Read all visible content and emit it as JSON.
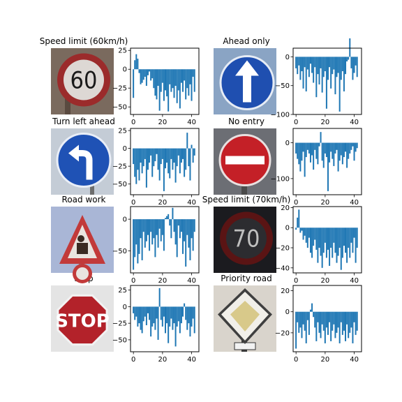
{
  "colors": {
    "bar": "#1f77b4",
    "axis": "#000000",
    "background": "#ffffff"
  },
  "signs": [
    {
      "title": "Speed limit (60km/h)",
      "icon": "speed-limit-60-sign-image",
      "sign_text": "60"
    },
    {
      "title": "Ahead only",
      "icon": "ahead-only-sign-image",
      "sign_text": ""
    },
    {
      "title": "Turn left ahead",
      "icon": "turn-left-ahead-sign-image",
      "sign_text": ""
    },
    {
      "title": "No entry",
      "icon": "no-entry-sign-image",
      "sign_text": ""
    },
    {
      "title": "Road work",
      "icon": "road-work-sign-image",
      "sign_text": ""
    },
    {
      "title": "Speed limit (70km/h)",
      "icon": "speed-limit-70-sign-image",
      "sign_text": "70"
    },
    {
      "title": "Stop",
      "icon": "stop-sign-image",
      "sign_text": "STOP"
    },
    {
      "title": "Priority road",
      "icon": "priority-road-sign-image",
      "sign_text": ""
    }
  ],
  "chart_data": [
    {
      "type": "bar",
      "title": "",
      "xlim": [
        -2,
        45
      ],
      "ylim": [
        -60,
        28
      ],
      "xticks": [
        0,
        20,
        40
      ],
      "yticks": [
        25,
        0,
        -25,
        -50
      ],
      "x": [
        0,
        1,
        2,
        3,
        4,
        5,
        6,
        7,
        8,
        9,
        10,
        11,
        12,
        13,
        14,
        15,
        16,
        17,
        18,
        19,
        20,
        21,
        22,
        23,
        24,
        25,
        26,
        27,
        28,
        29,
        30,
        31,
        32,
        33,
        34,
        35,
        36,
        37,
        38,
        39,
        40,
        41,
        42
      ],
      "values": [
        -38,
        12,
        20,
        14,
        -5,
        -20,
        -18,
        -14,
        -10,
        -22,
        -8,
        -3,
        -15,
        -12,
        -25,
        -35,
        -40,
        -22,
        -55,
        -30,
        -18,
        -42,
        -28,
        -36,
        -56,
        -20,
        -30,
        -25,
        -38,
        -22,
        -45,
        -28,
        -52,
        -18,
        -30,
        -15,
        -40,
        -25,
        -35,
        -20,
        -42,
        -10,
        -30
      ]
    },
    {
      "type": "bar",
      "title": "",
      "xlim": [
        -2,
        45
      ],
      "ylim": [
        -100,
        15
      ],
      "xticks": [
        0,
        20,
        40
      ],
      "yticks": [
        0,
        -50,
        -100
      ],
      "x": [
        0,
        1,
        2,
        3,
        4,
        5,
        6,
        7,
        8,
        9,
        10,
        11,
        12,
        13,
        14,
        15,
        16,
        17,
        18,
        19,
        20,
        21,
        22,
        23,
        24,
        25,
        26,
        27,
        28,
        29,
        30,
        31,
        32,
        33,
        34,
        35,
        36,
        37,
        38,
        39,
        40,
        41,
        42
      ],
      "values": [
        -20,
        -30,
        -15,
        -40,
        -25,
        -55,
        -18,
        -60,
        -22,
        -35,
        -12,
        -28,
        -45,
        -18,
        -70,
        -30,
        -48,
        -20,
        -62,
        -35,
        -25,
        -90,
        -40,
        -18,
        -55,
        -30,
        -22,
        -65,
        -35,
        -28,
        -95,
        -40,
        -25,
        -60,
        -30,
        -8,
        -5,
        32,
        -20,
        -40,
        -28,
        -15,
        -35
      ]
    },
    {
      "type": "bar",
      "title": "",
      "xlim": [
        -2,
        45
      ],
      "ylim": [
        -65,
        28
      ],
      "xticks": [
        0,
        20,
        40
      ],
      "yticks": [
        25,
        0,
        -25,
        -50
      ],
      "x": [
        0,
        1,
        2,
        3,
        4,
        5,
        6,
        7,
        8,
        9,
        10,
        11,
        12,
        13,
        14,
        15,
        16,
        17,
        18,
        19,
        20,
        21,
        22,
        23,
        24,
        25,
        26,
        27,
        28,
        29,
        30,
        31,
        32,
        33,
        34,
        35,
        36,
        37,
        38,
        39,
        40,
        41,
        42
      ],
      "values": [
        -22,
        -40,
        -50,
        -30,
        -45,
        -20,
        -35,
        -25,
        -15,
        -55,
        -30,
        -20,
        -10,
        -40,
        -25,
        -18,
        -8,
        -30,
        -45,
        -22,
        -15,
        -60,
        -28,
        -20,
        -35,
        -42,
        -15,
        -30,
        -20,
        -48,
        -25,
        -10,
        -35,
        -20,
        -15,
        -40,
        -30,
        22,
        -25,
        -45,
        5,
        -20,
        -10
      ]
    },
    {
      "type": "bar",
      "title": "",
      "xlim": [
        -2,
        45
      ],
      "ylim": [
        -145,
        40
      ],
      "xticks": [
        0,
        20,
        40
      ],
      "yticks": [
        0,
        -100
      ],
      "x": [
        0,
        1,
        2,
        3,
        4,
        5,
        6,
        7,
        8,
        9,
        10,
        11,
        12,
        13,
        14,
        15,
        16,
        17,
        18,
        19,
        20,
        21,
        22,
        23,
        24,
        25,
        26,
        27,
        28,
        29,
        30,
        31,
        32,
        33,
        34,
        35,
        36,
        37,
        38,
        39,
        40,
        41,
        42
      ],
      "values": [
        -30,
        -45,
        -60,
        -80,
        -50,
        -25,
        -95,
        -40,
        -20,
        -30,
        -55,
        -35,
        -75,
        -20,
        -45,
        -60,
        -10,
        30,
        -50,
        -70,
        -30,
        -40,
        -135,
        -55,
        -25,
        -45,
        -65,
        -30,
        -20,
        -80,
        -50,
        -35,
        -60,
        -40,
        -25,
        -70,
        -45,
        -30,
        -20,
        -10,
        -50,
        -25,
        -15
      ]
    },
    {
      "type": "bar",
      "title": "",
      "xlim": [
        -2,
        45
      ],
      "ylim": [
        -85,
        20
      ],
      "xticks": [
        0,
        20,
        40
      ],
      "yticks": [
        0,
        -50
      ],
      "x": [
        0,
        1,
        2,
        3,
        4,
        5,
        6,
        7,
        8,
        9,
        10,
        11,
        12,
        13,
        14,
        15,
        16,
        17,
        18,
        19,
        20,
        21,
        22,
        23,
        24,
        25,
        26,
        27,
        28,
        29,
        30,
        31,
        32,
        33,
        34,
        35,
        36,
        37,
        38,
        39,
        40,
        41,
        42
      ],
      "values": [
        -80,
        -60,
        -40,
        -70,
        -55,
        -30,
        -65,
        -20,
        -45,
        -35,
        -25,
        -50,
        -20,
        -40,
        -30,
        -60,
        -25,
        -45,
        -15,
        -35,
        -25,
        -50,
        2,
        5,
        8,
        -10,
        -30,
        18,
        -20,
        -40,
        -60,
        -10,
        -30,
        -20,
        -55,
        -35,
        -75,
        -25,
        -45,
        -65,
        -30,
        -50,
        -20
      ]
    },
    {
      "type": "bar",
      "title": "",
      "xlim": [
        -2,
        45
      ],
      "ylim": [
        -45,
        21
      ],
      "xticks": [
        0,
        20,
        40
      ],
      "yticks": [
        20,
        0,
        -20,
        -40
      ],
      "x": [
        0,
        1,
        2,
        3,
        4,
        5,
        6,
        7,
        8,
        9,
        10,
        11,
        12,
        13,
        14,
        15,
        16,
        17,
        18,
        19,
        20,
        21,
        22,
        23,
        24,
        25,
        26,
        27,
        28,
        29,
        30,
        31,
        32,
        33,
        34,
        35,
        36,
        37,
        38,
        39,
        40,
        41,
        42
      ],
      "values": [
        -2,
        10,
        18,
        -5,
        -3,
        -12,
        -8,
        -15,
        -20,
        -10,
        -25,
        -30,
        -18,
        -12,
        -22,
        -35,
        -20,
        -28,
        -40,
        -25,
        -15,
        -30,
        -22,
        -38,
        -20,
        -30,
        -15,
        -25,
        -35,
        -28,
        -20,
        -42,
        -30,
        -18,
        -25,
        -35,
        -20,
        -30,
        -15,
        -25,
        -10,
        -35,
        -20
      ]
    },
    {
      "type": "bar",
      "title": "",
      "xlim": [
        -2,
        45
      ],
      "ylim": [
        -68,
        32
      ],
      "xticks": [
        0,
        20,
        40
      ],
      "yticks": [
        25,
        0,
        -25,
        -50
      ],
      "x": [
        0,
        1,
        2,
        3,
        4,
        5,
        6,
        7,
        8,
        9,
        10,
        11,
        12,
        13,
        14,
        15,
        16,
        17,
        18,
        19,
        20,
        21,
        22,
        23,
        24,
        25,
        26,
        27,
        28,
        29,
        30,
        31,
        32,
        33,
        34,
        35,
        36,
        37,
        38,
        39,
        40,
        41,
        42
      ],
      "values": [
        -10,
        -20,
        -15,
        -30,
        -25,
        -35,
        -40,
        -22,
        -15,
        -28,
        -10,
        -20,
        -45,
        -30,
        -25,
        -35,
        -18,
        -50,
        28,
        -20,
        -30,
        -15,
        -40,
        -25,
        -55,
        -30,
        -18,
        -35,
        -25,
        -60,
        -30,
        -22,
        -40,
        -25,
        -15,
        5,
        -20,
        -35,
        -25,
        -45,
        -30,
        -18,
        -40
      ]
    },
    {
      "type": "bar",
      "title": "",
      "xlim": [
        -2,
        45
      ],
      "ylim": [
        -38,
        25
      ],
      "xticks": [
        0,
        20,
        40
      ],
      "yticks": [
        20,
        0,
        -20
      ],
      "x": [
        0,
        1,
        2,
        3,
        4,
        5,
        6,
        7,
        8,
        9,
        10,
        11,
        12,
        13,
        14,
        15,
        16,
        17,
        18,
        19,
        20,
        21,
        22,
        23,
        24,
        25,
        26,
        27,
        28,
        29,
        30,
        31,
        32,
        33,
        34,
        35,
        36,
        37,
        38,
        39,
        40,
        41,
        42
      ],
      "values": [
        -35,
        -10,
        -20,
        -15,
        -25,
        -12,
        -18,
        -30,
        -8,
        -22,
        2,
        8,
        -5,
        -15,
        -28,
        -10,
        -20,
        -25,
        -12,
        -18,
        -30,
        -15,
        -22,
        -10,
        -28,
        -18,
        -12,
        -25,
        -20,
        -15,
        -30,
        -10,
        -22,
        -18,
        -28,
        -12,
        -25,
        -20,
        -15,
        -30,
        -10,
        -22,
        -18
      ]
    }
  ]
}
